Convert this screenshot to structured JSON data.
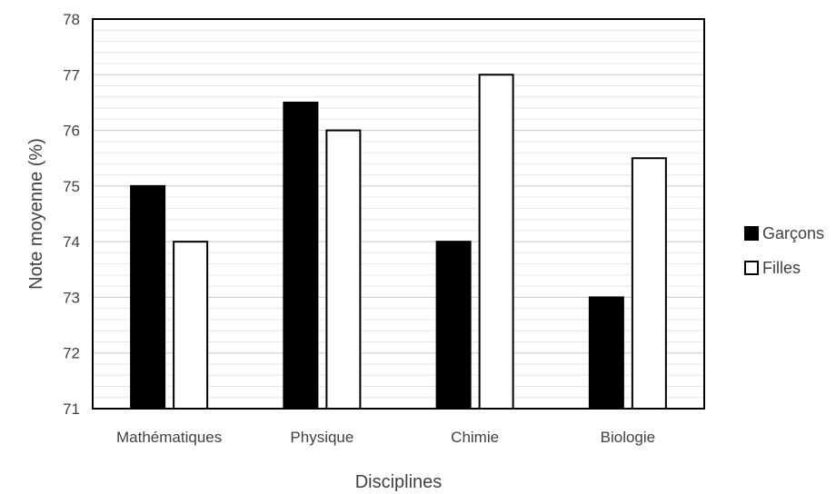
{
  "chart_data": {
    "type": "bar",
    "title": "",
    "xlabel": "Disciplines",
    "ylabel": "Note moyenne (%)",
    "categories": [
      "Mathématiques",
      "Physique",
      "Chimie",
      "Biologie"
    ],
    "series": [
      {
        "name": "Garçons",
        "values": [
          75,
          76.5,
          74,
          73
        ],
        "color": "#000000"
      },
      {
        "name": "Filles",
        "values": [
          74,
          76,
          77,
          75.5
        ],
        "color": "#ffffff"
      }
    ],
    "ylim": [
      71,
      78
    ],
    "yticks": [
      "71",
      "72",
      "73",
      "74",
      "75",
      "76",
      "77",
      "78"
    ],
    "grid": true,
    "legend_position": "right"
  }
}
